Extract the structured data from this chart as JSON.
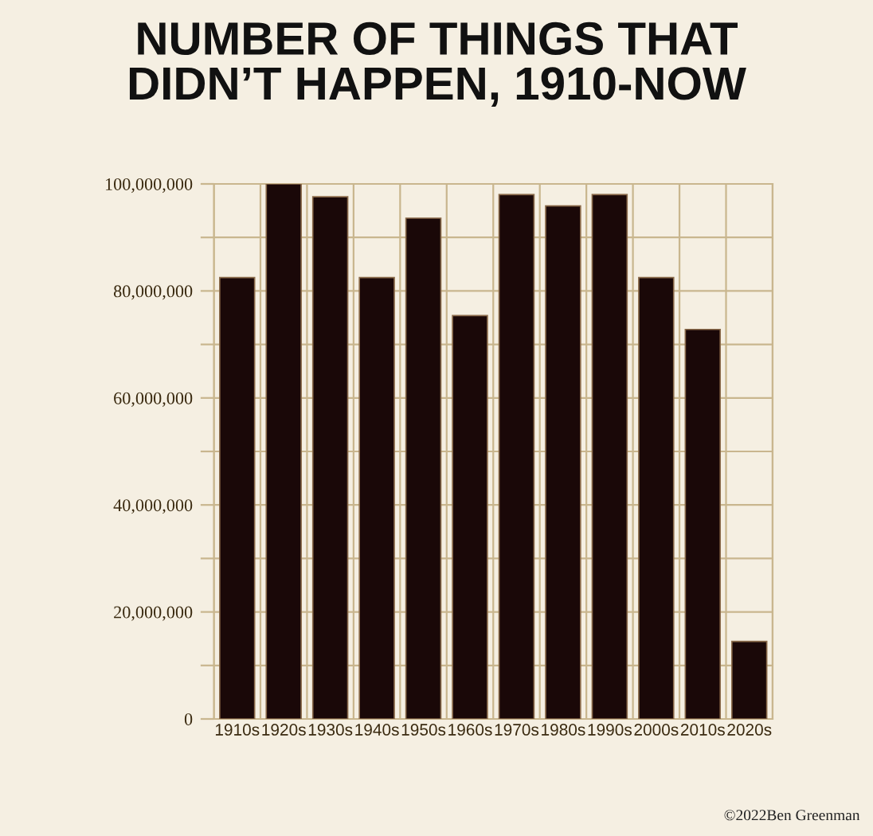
{
  "chart_data": {
    "type": "bar",
    "title": "NUMBER OF THINGS THAT\nDIDN’T HAPPEN, 1910-NOW",
    "categories": [
      "1910s",
      "1920s",
      "1930s",
      "1940s",
      "1950s",
      "1960s",
      "1970s",
      "1980s",
      "1990s",
      "2000s",
      "2010s",
      "2020s"
    ],
    "values": [
      82500000,
      100000000,
      97600000,
      82500000,
      93600000,
      75400000,
      98000000,
      95900000,
      98000000,
      82500000,
      72800000,
      14500000
    ],
    "color": "#1a0808",
    "ylim": [
      0,
      100000000
    ],
    "yticks": [
      {
        "value": 0,
        "label": "0"
      },
      {
        "value": 10000000,
        "label": null
      },
      {
        "value": 20000000,
        "label": "20,000,000"
      },
      {
        "value": 30000000,
        "label": null
      },
      {
        "value": 40000000,
        "label": "40,000,000"
      },
      {
        "value": 50000000,
        "label": null
      },
      {
        "value": 60000000,
        "label": "60,000,000"
      },
      {
        "value": 70000000,
        "label": null
      },
      {
        "value": 80000000,
        "label": "80,000,000"
      },
      {
        "value": 90000000,
        "label": null
      },
      {
        "value": 100000000,
        "label": "100,000,000"
      }
    ],
    "grid": true,
    "annotations": [
      "©2022Ben Greenman"
    ]
  }
}
